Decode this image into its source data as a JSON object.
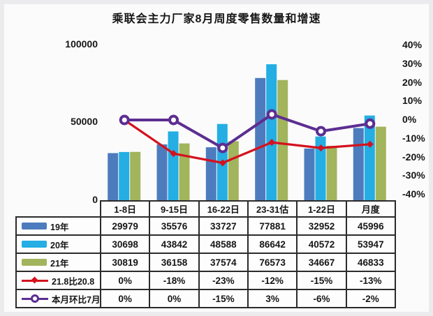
{
  "title": "乘联会主力厂家8月周度零售数量和增速",
  "chart_data": {
    "type": "bar+line",
    "title": "乘联会主力厂家8月周度零售数量和增速",
    "categories": [
      "1-8日",
      "9-15日",
      "16-22日",
      "23-31估",
      "1-22日",
      "月度"
    ],
    "bar_series": [
      {
        "name": "19年",
        "color": "#4d7cbe",
        "values": [
          29979,
          35576,
          33727,
          77881,
          32952,
          45996
        ]
      },
      {
        "name": "20年",
        "color": "#24aee3",
        "values": [
          30698,
          43842,
          48588,
          86642,
          40572,
          53947
        ]
      },
      {
        "name": "21年",
        "color": "#a2b45c",
        "values": [
          30819,
          36158,
          37574,
          76573,
          34667,
          46833
        ]
      }
    ],
    "line_series": [
      {
        "name": "21.8比20.8",
        "color": "#d4121e",
        "marker": "diamond",
        "values_pct": [
          0,
          -18,
          -23,
          -12,
          -15,
          -13
        ]
      },
      {
        "name": "本月环比7月",
        "color": "#5c2e91",
        "marker": "circle",
        "values_pct": [
          0,
          0,
          -15,
          3,
          -6,
          -2
        ]
      }
    ],
    "left_axis": {
      "ticks": [
        "100000",
        "50000",
        "0"
      ],
      "min": 0,
      "max": 100000
    },
    "right_axis": {
      "ticks": [
        "40%",
        "30%",
        "20%",
        "10%",
        "0%",
        "-10%",
        "-20%",
        "-30%",
        "-40%"
      ],
      "min": -40,
      "max": 40
    },
    "grid": false,
    "legend_position": "table-left-column"
  },
  "table": {
    "columns": [
      "1-8日",
      "9-15日",
      "16-22日",
      "23-31估",
      "1-22日",
      "月度"
    ],
    "rows": [
      {
        "label": "19年",
        "swatch": "bar",
        "color": "#4d7cbe",
        "cells": [
          "29979",
          "35576",
          "33727",
          "77881",
          "32952",
          "45996"
        ]
      },
      {
        "label": "20年",
        "swatch": "bar",
        "color": "#24aee3",
        "cells": [
          "30698",
          "43842",
          "48588",
          "86642",
          "40572",
          "53947"
        ]
      },
      {
        "label": "21年",
        "swatch": "bar",
        "color": "#a2b45c",
        "cells": [
          "30819",
          "36158",
          "37574",
          "76573",
          "34667",
          "46833"
        ]
      },
      {
        "label": "21.8比20.8",
        "swatch": "line-diamond",
        "color": "#d4121e",
        "cells": [
          "0%",
          "-18%",
          "-23%",
          "-12%",
          "-15%",
          "-13%"
        ]
      },
      {
        "label": "本月环比7月",
        "swatch": "line-circle",
        "color": "#5c2e91",
        "cells": [
          "0%",
          "0%",
          "-15%",
          "3%",
          "-6%",
          "-2%"
        ]
      }
    ]
  }
}
